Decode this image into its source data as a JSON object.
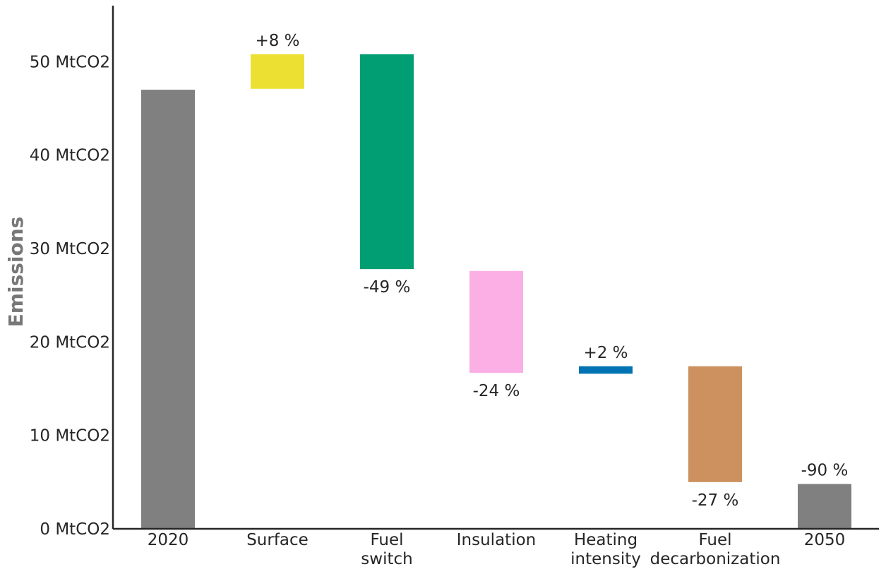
{
  "chart_data": {
    "type": "bar",
    "subtype": "waterfall",
    "ylabel": "Emissions",
    "y_unit": "MtCO2",
    "ylim": [
      0,
      56
    ],
    "yticks": [
      {
        "value": 0,
        "label": "0 MtCO2"
      },
      {
        "value": 10,
        "label": "10 MtCO2"
      },
      {
        "value": 20,
        "label": "20 MtCO2"
      },
      {
        "value": 30,
        "label": "30 MtCO2"
      },
      {
        "value": 40,
        "label": "40 MtCO2"
      },
      {
        "value": 50,
        "label": "50 MtCO2"
      }
    ],
    "grid": false,
    "bars": [
      {
        "category": [
          "2020"
        ],
        "bottom": 0,
        "top": 47.0,
        "color": "#808080",
        "label": "",
        "label_pos": "none"
      },
      {
        "category": [
          "Surface"
        ],
        "bottom": 47.1,
        "top": 50.8,
        "color": "#ece133",
        "label": "+8 %",
        "label_pos": "above"
      },
      {
        "category": [
          "Fuel",
          "switch"
        ],
        "bottom": 27.8,
        "top": 50.8,
        "color": "#029e73",
        "label": "-49 %",
        "label_pos": "below"
      },
      {
        "category": [
          "Insulation"
        ],
        "bottom": 16.7,
        "top": 27.6,
        "color": "#fbafe4",
        "label": "-24 %",
        "label_pos": "below"
      },
      {
        "category": [
          "Heating",
          "intensity"
        ],
        "bottom": 16.6,
        "top": 17.4,
        "color": "#0173b2",
        "label": "+2 %",
        "label_pos": "above"
      },
      {
        "category": [
          "Fuel",
          "decarbonization"
        ],
        "bottom": 5.0,
        "top": 17.4,
        "color": "#cc915f",
        "label": "-27 %",
        "label_pos": "below"
      },
      {
        "category": [
          "2050"
        ],
        "bottom": 0,
        "top": 4.8,
        "color": "#808080",
        "label": "-90 %",
        "label_pos": "above"
      }
    ]
  }
}
